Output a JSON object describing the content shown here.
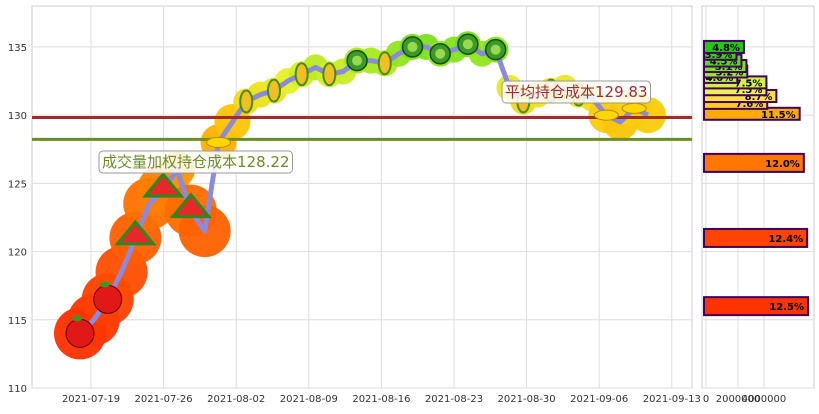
{
  "chart_data": {
    "type": "line",
    "title": "",
    "xlabel": "",
    "ylabel": "",
    "ylim": [
      110,
      138
    ],
    "y_ticks": [
      110,
      115,
      120,
      125,
      130,
      135
    ],
    "x_tick_labels": [
      "2021-07-19",
      "2021-07-26",
      "2021-08-02",
      "2021-08-09",
      "2021-08-16",
      "2021-08-23",
      "2021-08-30",
      "2021-09-06",
      "2021-09-13"
    ],
    "grid": true,
    "series": [
      {
        "values": [
          114.0,
          115.0,
          116.5,
          118.5,
          121.0,
          123.5,
          124.5,
          126.0,
          123.0,
          121.5,
          128.0,
          129.5,
          131.0,
          131.5,
          131.8,
          132.5,
          133.0,
          133.5,
          133.0,
          133.2,
          134.0,
          134.0,
          133.8,
          134.5,
          135.0,
          135.0,
          134.5,
          134.8,
          135.2,
          134.5,
          134.8,
          132.0,
          131.0,
          131.5,
          131.8,
          132.0,
          131.5,
          131.2,
          130.0,
          129.5,
          130.5,
          130.0
        ],
        "color": "#8a8ae0"
      }
    ],
    "reference_lines": [
      {
        "label": "成交量加权持仓成本128.22",
        "value": 128.22,
        "color": "#6b8e23"
      },
      {
        "label": "平均持仓成本129.83",
        "value": 129.83,
        "color": "#a52a2a"
      }
    ],
    "volume_profile": {
      "x_tick_labels": [
        "0",
        "2000000",
        "4000000"
      ],
      "bars": [
        {
          "price": 116.0,
          "percent": "12.5%",
          "color": "#ff3300"
        },
        {
          "price": 121.0,
          "percent": "12.4%",
          "color": "#ff4400"
        },
        {
          "price": 126.5,
          "percent": "12.0%",
          "color": "#ff7700"
        },
        {
          "price": 130.1,
          "percent": "11.5%",
          "color": "#ffaa00"
        },
        {
          "price": 130.9,
          "percent": "7.6%",
          "color": "#ffcc22"
        },
        {
          "price": 131.4,
          "percent": "8.7%",
          "color": "#ffe040"
        },
        {
          "price": 131.9,
          "percent": "7.5%",
          "color": "#eef050"
        },
        {
          "price": 132.4,
          "percent": "7.5%",
          "color": "#d4f040"
        },
        {
          "price": 132.8,
          "percent": "4.0%",
          "color": "#b8ee30"
        },
        {
          "price": 133.2,
          "percent": "5.2%",
          "color": "#9ae828"
        },
        {
          "price": 133.6,
          "percent": "5.1%",
          "color": "#7ee020"
        },
        {
          "price": 134.0,
          "percent": "4.5%",
          "color": "#5cd818"
        },
        {
          "price": 134.5,
          "percent": "3.9%",
          "color": "#40d010"
        },
        {
          "price": 135.0,
          "percent": "4.8%",
          "color": "#22c80a"
        }
      ]
    }
  }
}
